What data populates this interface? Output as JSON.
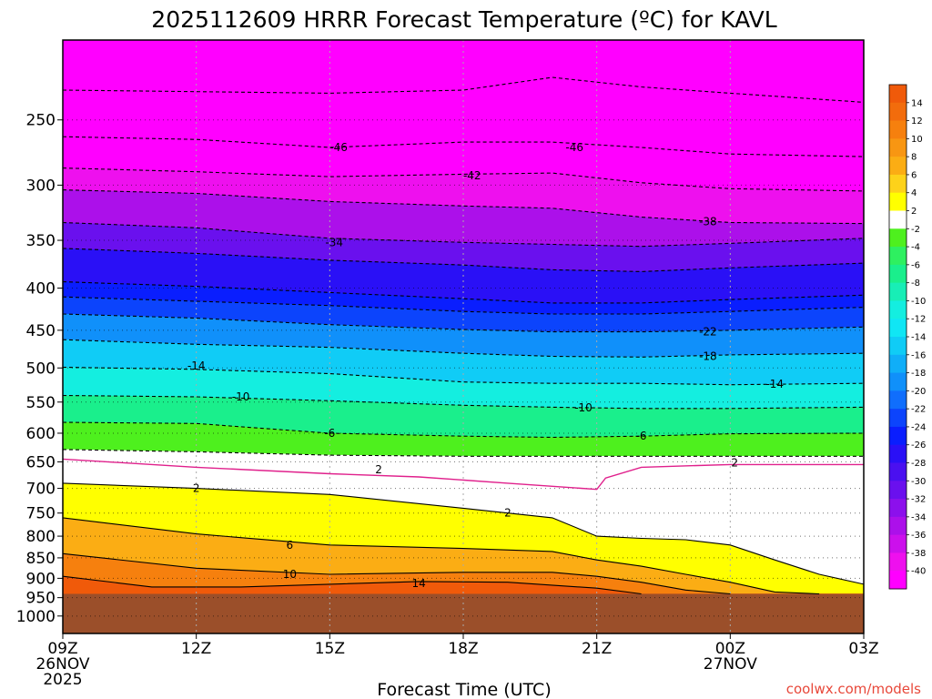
{
  "chart_data": {
    "type": "heatmap",
    "title": "2025112609 HRRR Forecast Temperature (ºC) for KAVL",
    "xlabel": "Forecast Time (UTC)",
    "ylabel": "",
    "credit": "coolwx.com/models",
    "x_ticks": [
      {
        "hour": 0,
        "line1": "09Z",
        "line2": "26NOV",
        "line3": "2025"
      },
      {
        "hour": 3,
        "line1": "12Z",
        "line2": "",
        "line3": ""
      },
      {
        "hour": 6,
        "line1": "15Z",
        "line2": "",
        "line3": ""
      },
      {
        "hour": 9,
        "line1": "18Z",
        "line2": "",
        "line3": ""
      },
      {
        "hour": 12,
        "line1": "21Z",
        "line2": "",
        "line3": ""
      },
      {
        "hour": 15,
        "line1": "00Z",
        "line2": "27NOV",
        "line3": ""
      },
      {
        "hour": 18,
        "line1": "03Z",
        "line2": "",
        "line3": ""
      }
    ],
    "xlim": [
      0,
      18
    ],
    "y_ticks": [
      250,
      300,
      350,
      400,
      450,
      500,
      550,
      600,
      650,
      700,
      750,
      800,
      850,
      900,
      950,
      1000
    ],
    "ylim": [
      1050,
      200
    ],
    "surface_pressure_hpa": 940,
    "colorbar_ticks": [
      14,
      12,
      10,
      8,
      6,
      4,
      2,
      -2,
      -4,
      -6,
      -8,
      -10,
      -12,
      -14,
      -16,
      -18,
      -20,
      -22,
      -24,
      -26,
      -28,
      -30,
      -32,
      -34,
      -36,
      -38,
      -40
    ],
    "color_bins": [
      {
        "min": 14,
        "max": 16,
        "color": "#f05a0a"
      },
      {
        "min": 12,
        "max": 14,
        "color": "#f26c0c"
      },
      {
        "min": 10,
        "max": 12,
        "color": "#f6800e"
      },
      {
        "min": 8,
        "max": 10,
        "color": "#f89612"
      },
      {
        "min": 6,
        "max": 8,
        "color": "#fbad14"
      },
      {
        "min": 4,
        "max": 6,
        "color": "#fdd21a"
      },
      {
        "min": 2,
        "max": 4,
        "color": "#ffff00"
      },
      {
        "min": -2,
        "max": 2,
        "color": "#ffffff"
      },
      {
        "min": -4,
        "max": -2,
        "color": "#4ef01e"
      },
      {
        "min": -6,
        "max": -4,
        "color": "#2ef060"
      },
      {
        "min": -8,
        "max": -6,
        "color": "#1aef8c"
      },
      {
        "min": -10,
        "max": -8,
        "color": "#18eeb6"
      },
      {
        "min": -12,
        "max": -10,
        "color": "#14eee0"
      },
      {
        "min": -14,
        "max": -12,
        "color": "#10e6f4"
      },
      {
        "min": -16,
        "max": -14,
        "color": "#10ccf6"
      },
      {
        "min": -18,
        "max": -16,
        "color": "#10aef8"
      },
      {
        "min": -20,
        "max": -18,
        "color": "#1090fa"
      },
      {
        "min": -22,
        "max": -20,
        "color": "#106efc"
      },
      {
        "min": -24,
        "max": -22,
        "color": "#0c44fc"
      },
      {
        "min": -26,
        "max": -24,
        "color": "#0a1efe"
      },
      {
        "min": -28,
        "max": -26,
        "color": "#2a10f6"
      },
      {
        "min": -30,
        "max": -28,
        "color": "#4a10f0"
      },
      {
        "min": -32,
        "max": -30,
        "color": "#6a10ee"
      },
      {
        "min": -34,
        "max": -32,
        "color": "#8c10ec"
      },
      {
        "min": -36,
        "max": -34,
        "color": "#ac10ea"
      },
      {
        "min": -38,
        "max": -36,
        "color": "#cc10ec"
      },
      {
        "min": -40,
        "max": -38,
        "color": "#ee10ee"
      },
      {
        "min": -60,
        "max": -40,
        "color": "#ff00ff"
      }
    ],
    "contours": [
      {
        "value": -46,
        "points": [
          [
            0,
            230
          ],
          [
            3,
            231
          ],
          [
            6,
            232
          ],
          [
            9,
            230
          ],
          [
            11,
            222
          ],
          [
            13,
            228
          ],
          [
            15,
            232
          ],
          [
            18,
            238
          ]
        ]
      },
      {
        "value": -46,
        "points": [
          [
            0,
            262
          ],
          [
            3,
            264
          ],
          [
            6,
            270
          ],
          [
            9,
            266
          ],
          [
            11,
            266
          ],
          [
            13,
            270
          ],
          [
            15,
            275
          ],
          [
            18,
            277
          ]
        ]
      },
      {
        "value": -42,
        "points": [
          [
            0,
            286
          ],
          [
            3,
            289
          ],
          [
            6,
            293
          ],
          [
            9,
            291
          ],
          [
            11,
            290
          ],
          [
            13,
            298
          ],
          [
            15,
            303
          ],
          [
            18,
            305
          ]
        ]
      },
      {
        "value": -38,
        "points": [
          [
            0,
            304
          ],
          [
            3,
            307
          ],
          [
            6,
            314
          ],
          [
            9,
            318
          ],
          [
            11,
            320
          ],
          [
            13,
            328
          ],
          [
            15,
            333
          ],
          [
            18,
            334
          ]
        ]
      },
      {
        "value": -34,
        "points": [
          [
            0,
            333
          ],
          [
            3,
            338
          ],
          [
            6,
            348
          ],
          [
            9,
            352
          ],
          [
            11,
            354
          ],
          [
            13,
            356
          ],
          [
            15,
            353
          ],
          [
            18,
            348
          ]
        ]
      },
      {
        "value": -30,
        "points": [
          [
            0,
            358
          ],
          [
            3,
            363
          ],
          [
            6,
            370
          ],
          [
            9,
            375
          ],
          [
            11,
            380
          ],
          [
            13,
            382
          ],
          [
            15,
            378
          ],
          [
            18,
            373
          ]
        ]
      },
      {
        "value": -26,
        "points": [
          [
            0,
            393
          ],
          [
            3,
            398
          ],
          [
            6,
            405
          ],
          [
            9,
            412
          ],
          [
            11,
            417
          ],
          [
            13,
            417
          ],
          [
            15,
            413
          ],
          [
            18,
            408
          ]
        ]
      },
      {
        "value": -24,
        "points": [
          [
            0,
            410
          ],
          [
            3,
            415
          ],
          [
            6,
            420
          ],
          [
            9,
            427
          ],
          [
            11,
            430
          ],
          [
            13,
            430
          ],
          [
            15,
            427
          ],
          [
            18,
            422
          ]
        ]
      },
      {
        "value": -22,
        "points": [
          [
            0,
            430
          ],
          [
            3,
            435
          ],
          [
            6,
            443
          ],
          [
            9,
            449
          ],
          [
            11,
            452
          ],
          [
            13,
            452
          ],
          [
            15,
            450
          ],
          [
            18,
            446
          ]
        ]
      },
      {
        "value": -18,
        "points": [
          [
            0,
            462
          ],
          [
            3,
            468
          ],
          [
            6,
            472
          ],
          [
            9,
            480
          ],
          [
            11,
            484
          ],
          [
            13,
            485
          ],
          [
            15,
            482
          ],
          [
            18,
            480
          ]
        ]
      },
      {
        "value": -14,
        "points": [
          [
            0,
            499
          ],
          [
            3,
            502
          ],
          [
            6,
            508
          ],
          [
            9,
            520
          ],
          [
            11,
            522
          ],
          [
            13,
            522
          ],
          [
            15,
            524
          ],
          [
            18,
            522
          ]
        ]
      },
      {
        "value": -10,
        "points": [
          [
            0,
            540
          ],
          [
            3,
            542
          ],
          [
            6,
            548
          ],
          [
            9,
            555
          ],
          [
            11,
            558
          ],
          [
            13,
            560
          ],
          [
            15,
            560
          ],
          [
            18,
            558
          ]
        ]
      },
      {
        "value": -6,
        "points": [
          [
            0,
            582
          ],
          [
            3,
            584
          ],
          [
            6,
            600
          ],
          [
            9,
            605
          ],
          [
            11,
            607
          ],
          [
            13,
            605
          ],
          [
            15,
            601
          ],
          [
            18,
            600
          ]
        ]
      },
      {
        "value": -2,
        "points": [
          [
            0,
            628
          ],
          [
            3,
            632
          ],
          [
            6,
            638
          ],
          [
            9,
            640
          ],
          [
            11,
            640
          ],
          [
            13,
            640
          ],
          [
            15,
            640
          ],
          [
            18,
            640
          ]
        ]
      },
      {
        "value": 2,
        "points": [
          [
            0,
            690
          ],
          [
            3,
            700
          ],
          [
            6,
            712
          ],
          [
            9,
            740
          ],
          [
            11,
            760
          ],
          [
            12,
            800
          ],
          [
            13,
            805
          ],
          [
            14,
            808
          ],
          [
            15,
            820
          ],
          [
            16,
            855
          ],
          [
            17,
            890
          ],
          [
            18,
            915
          ]
        ]
      },
      {
        "value": 6,
        "points": [
          [
            0,
            760
          ],
          [
            3,
            795
          ],
          [
            6,
            820
          ],
          [
            9,
            828
          ],
          [
            11,
            835
          ],
          [
            12,
            855
          ],
          [
            13,
            870
          ],
          [
            14,
            890
          ],
          [
            15,
            910
          ],
          [
            16,
            935
          ],
          [
            17,
            940
          ]
        ]
      },
      {
        "value": 10,
        "points": [
          [
            0,
            840
          ],
          [
            3,
            875
          ],
          [
            6,
            890
          ],
          [
            9,
            885
          ],
          [
            11,
            885
          ],
          [
            12,
            895
          ],
          [
            13,
            910
          ],
          [
            14,
            930
          ],
          [
            15,
            940
          ]
        ]
      },
      {
        "value": 14,
        "points": [
          [
            0,
            895
          ],
          [
            2,
            922
          ],
          [
            4,
            922
          ],
          [
            6,
            915
          ],
          [
            8,
            908
          ],
          [
            10,
            910
          ],
          [
            12,
            925
          ],
          [
            13,
            940
          ]
        ]
      }
    ],
    "freezing_line": {
      "value": 0,
      "points": [
        [
          0,
          645
        ],
        [
          3,
          660
        ],
        [
          6,
          672
        ],
        [
          8,
          678
        ],
        [
          10,
          690
        ],
        [
          12,
          702
        ],
        [
          12.2,
          680
        ],
        [
          13,
          660
        ],
        [
          15,
          655
        ],
        [
          18,
          655
        ]
      ]
    },
    "contour_labels": [
      {
        "text": "-46",
        "hour": 6.2,
        "hpa": 270
      },
      {
        "text": "-46",
        "hour": 11.5,
        "hpa": 270
      },
      {
        "text": "-42",
        "hour": 9.2,
        "hpa": 292
      },
      {
        "text": "-38",
        "hour": 14.5,
        "hpa": 332
      },
      {
        "text": "-34",
        "hour": 6.1,
        "hpa": 352
      },
      {
        "text": "-22",
        "hour": 14.5,
        "hpa": 452
      },
      {
        "text": "-18",
        "hour": 14.5,
        "hpa": 484
      },
      {
        "text": "-14",
        "hour": 3.0,
        "hpa": 497
      },
      {
        "text": "-14",
        "hour": 16.0,
        "hpa": 523
      },
      {
        "text": "-10",
        "hour": 4.0,
        "hpa": 542
      },
      {
        "text": "-10",
        "hour": 11.7,
        "hpa": 559
      },
      {
        "text": "-6",
        "hour": 6.0,
        "hpa": 600
      },
      {
        "text": "-6",
        "hour": 13.0,
        "hpa": 605
      },
      {
        "text": "2",
        "hour": 7.1,
        "hpa": 664
      },
      {
        "text": "2",
        "hour": 15.1,
        "hpa": 652
      },
      {
        "text": "2",
        "hour": 3.0,
        "hpa": 700
      },
      {
        "text": "2",
        "hour": 10.0,
        "hpa": 750
      },
      {
        "text": "6",
        "hour": 5.1,
        "hpa": 820
      },
      {
        "text": "10",
        "hour": 5.1,
        "hpa": 890
      },
      {
        "text": "14",
        "hour": 8.0,
        "hpa": 913
      }
    ],
    "stratum_legend_note": ""
  }
}
